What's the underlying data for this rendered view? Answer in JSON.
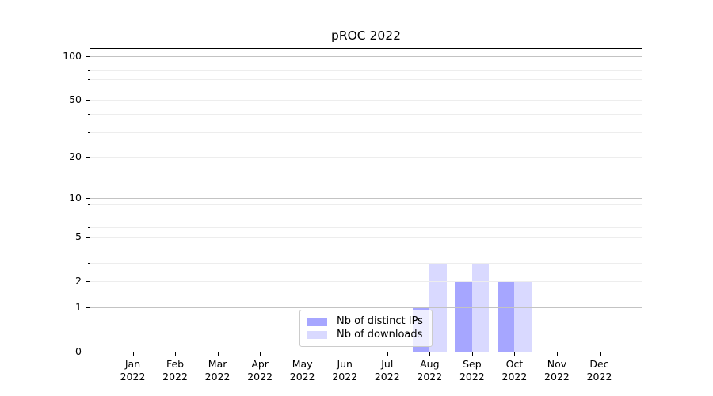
{
  "chart_data": {
    "type": "bar",
    "title": "pROC 2022",
    "categories": [
      "Jan 2022",
      "Feb 2022",
      "Mar 2022",
      "Apr 2022",
      "May 2022",
      "Jun 2022",
      "Jul 2022",
      "Aug 2022",
      "Sep 2022",
      "Oct 2022",
      "Nov 2022",
      "Dec 2022"
    ],
    "x_tick_month": [
      "Jan",
      "Feb",
      "Mar",
      "Apr",
      "May",
      "Jun",
      "Jul",
      "Aug",
      "Sep",
      "Oct",
      "Nov",
      "Dec"
    ],
    "x_tick_year": "2022",
    "series": [
      {
        "name": "Nb of distinct IPs",
        "color": "#a6a6ff",
        "values": [
          0,
          0,
          0,
          0,
          0,
          0,
          0,
          1,
          2,
          2,
          0,
          0
        ]
      },
      {
        "name": "Nb of downloads",
        "color": "#d9d9ff",
        "values": [
          0,
          0,
          0,
          0,
          0,
          0,
          0,
          3,
          3,
          2,
          0,
          0
        ]
      }
    ],
    "y_axis": {
      "scale": "log1p",
      "min": 0,
      "max": 112,
      "labeled_ticks": [
        0,
        1,
        2,
        5,
        10,
        20,
        50,
        100
      ],
      "major_grid": [
        1,
        10,
        100
      ],
      "minor_grid": [
        2,
        3,
        4,
        5,
        6,
        7,
        8,
        9,
        20,
        30,
        40,
        50,
        60,
        70,
        80,
        90
      ]
    },
    "grid": true,
    "legend_position": "lower center"
  },
  "colors": {
    "bar_distinct_ips": "#a6a6ff",
    "bar_downloads": "#d9d9ff",
    "grid_major": "#c3c3c3",
    "grid_minor": "#ededed",
    "spine": "#000000",
    "legend_border": "#cccccc",
    "background": "#ffffff"
  }
}
